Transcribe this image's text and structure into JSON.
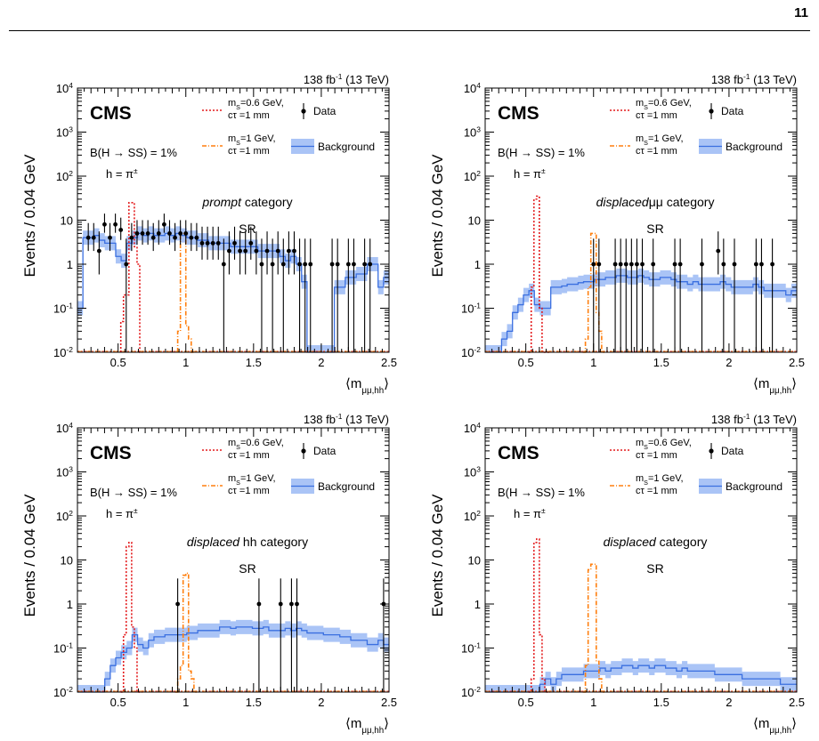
{
  "page": {
    "number": "11"
  },
  "shared": {
    "lumi": "138 fb",
    "lumi_exp": "-1",
    "energy": " (13 TeV)",
    "cms": "CMS",
    "br": "B(H → SS) = 1%",
    "hadron": "h = π",
    "hadron_exp": "±",
    "ylabel": "Events / 0.04 GeV",
    "xlabel": "⟨m",
    "xlabel_sub": "μμ,hh",
    "xlabel_close": "⟩",
    "legend": {
      "sig1_line1": "m",
      "sig1_sub": "S",
      "sig1_rest": "=0.6 GeV,",
      "sig1_line2": "cτ =1 mm",
      "sig2_line1": "m",
      "sig2_sub": "S",
      "sig2_rest": "=1 GeV,",
      "sig2_line2": "cτ =1 mm",
      "data": "Data",
      "background": "Background"
    },
    "xticks": [
      "0.5",
      "1",
      "1.5",
      "2",
      "2.5"
    ],
    "yticks": [
      {
        "base": "10",
        "exp": "-2"
      },
      {
        "base": "10",
        "exp": "-1"
      },
      {
        "base": "1",
        "exp": ""
      },
      {
        "base": "10",
        "exp": ""
      },
      {
        "base": "10",
        "exp": "2"
      },
      {
        "base": "10",
        "exp": "3"
      },
      {
        "base": "10",
        "exp": "4"
      }
    ]
  },
  "colors": {
    "sig1": "#e31a1c",
    "sig2": "#ff7f0e",
    "bkg_line": "#3a6fe0",
    "bkg_band": "#aac4f6",
    "data": "#000000"
  },
  "chart_data": [
    {
      "type": "histogram",
      "category_italic": "prompt",
      "category_rest": " category",
      "region": "SR",
      "xlim": [
        0.2,
        2.5
      ],
      "ylim": [
        0.01,
        10000
      ],
      "yscale": "log",
      "background": [
        0.1,
        4,
        4,
        4.5,
        3.5,
        3,
        3,
        1.5,
        1.2,
        3,
        4,
        5,
        4.5,
        5,
        4.5,
        4.5,
        5,
        4.5,
        5,
        4.5,
        4,
        4,
        3.5,
        3.5,
        3,
        3,
        3,
        3,
        2.5,
        2.5,
        2.5,
        2.5,
        2.5,
        2,
        2,
        2,
        2,
        1.5,
        1.2,
        1.5,
        1,
        0.4,
        0.01,
        0.01,
        0.01,
        0.01,
        0.01,
        0.3,
        0.3,
        0.5,
        0.5,
        0.6,
        0.6,
        1.0,
        1.0,
        0.3,
        0.5
      ],
      "sig1": {
        "x0": 0.52,
        "x1": 0.68,
        "values": [
          0.05,
          0.2,
          0.2,
          25,
          25,
          2.5,
          1,
          0.01
        ]
      },
      "sig2": {
        "x0": 0.94,
        "x1": 1.06,
        "values": [
          0.03,
          5,
          5,
          0.04,
          0.02,
          0.01
        ]
      },
      "data_x": [
        0.28,
        0.32,
        0.36,
        0.4,
        0.44,
        0.48,
        0.52,
        0.56,
        0.6,
        0.64,
        0.68,
        0.72,
        0.76,
        0.8,
        0.84,
        0.88,
        0.92,
        0.96,
        1.0,
        1.04,
        1.08,
        1.12,
        1.16,
        1.2,
        1.24,
        1.28,
        1.32,
        1.36,
        1.4,
        1.44,
        1.48,
        1.52,
        1.56,
        1.6,
        1.64,
        1.68,
        1.72,
        1.76,
        1.8,
        1.84,
        1.88,
        1.92,
        2.08,
        2.12,
        2.2,
        2.24,
        2.32,
        2.36
      ],
      "data_y": [
        4,
        4,
        2,
        8,
        4,
        8,
        6,
        1,
        4,
        5,
        5,
        5,
        4,
        5,
        8,
        5,
        4,
        5,
        5,
        4,
        4,
        3,
        3,
        3,
        3,
        1,
        2,
        3,
        2,
        2,
        3,
        2,
        1,
        2,
        1,
        2,
        1,
        2,
        2,
        1,
        1,
        1,
        1,
        1,
        1,
        1,
        1,
        1
      ]
    },
    {
      "type": "histogram",
      "category_italic": "displaced",
      "category_rest": "μμ category",
      "region": "SR",
      "xlim": [
        0.2,
        2.5
      ],
      "ylim": [
        0.01,
        10000
      ],
      "yscale": "log",
      "background": [
        0.01,
        0.01,
        0.01,
        0.02,
        0.03,
        0.08,
        0.12,
        0.2,
        0.25,
        0.12,
        0.1,
        0.1,
        0.3,
        0.3,
        0.32,
        0.35,
        0.35,
        0.38,
        0.4,
        0.4,
        0.45,
        0.45,
        0.5,
        0.5,
        0.55,
        0.55,
        0.5,
        0.5,
        0.55,
        0.5,
        0.45,
        0.45,
        0.5,
        0.5,
        0.45,
        0.4,
        0.4,
        0.35,
        0.4,
        0.35,
        0.35,
        0.35,
        0.35,
        0.4,
        0.35,
        0.3,
        0.3,
        0.3,
        0.3,
        0.35,
        0.3,
        0.25,
        0.25,
        0.25,
        0.25,
        0.2,
        0.25
      ],
      "sig1": {
        "x0": 0.52,
        "x1": 0.68,
        "values": [
          0.01,
          0.3,
          30,
          35,
          0.1,
          0.01,
          0.01,
          0.01
        ]
      },
      "sig2": {
        "x0": 0.92,
        "x1": 1.08,
        "values": [
          0.01,
          0.02,
          0.3,
          5,
          5,
          0.08,
          0.03,
          0.01
        ]
      },
      "data_x": [
        1.0,
        1.04,
        1.16,
        1.2,
        1.24,
        1.28,
        1.32,
        1.36,
        1.44,
        1.6,
        1.64,
        1.8,
        1.92,
        1.96,
        2.04,
        2.2,
        2.24,
        2.32
      ],
      "data_y": [
        1,
        1,
        1,
        1,
        1,
        1,
        1,
        1,
        1,
        1,
        1,
        1,
        2,
        1,
        1,
        1,
        1,
        1
      ]
    },
    {
      "type": "histogram",
      "category_italic": "displaced",
      "category_rest": " hh category",
      "region": "SR",
      "xlim": [
        0.2,
        2.5
      ],
      "ylim": [
        0.01,
        10000
      ],
      "yscale": "log",
      "background": [
        0.01,
        0.01,
        0.01,
        0.01,
        0.01,
        0.02,
        0.04,
        0.06,
        0.08,
        0.1,
        0.2,
        0.12,
        0.1,
        0.15,
        0.18,
        0.18,
        0.2,
        0.2,
        0.2,
        0.2,
        0.22,
        0.22,
        0.25,
        0.25,
        0.25,
        0.25,
        0.3,
        0.3,
        0.28,
        0.3,
        0.3,
        0.3,
        0.28,
        0.28,
        0.3,
        0.25,
        0.25,
        0.25,
        0.28,
        0.25,
        0.28,
        0.25,
        0.22,
        0.22,
        0.22,
        0.2,
        0.2,
        0.2,
        0.18,
        0.18,
        0.15,
        0.15,
        0.15,
        0.12,
        0.12,
        0.15,
        0.12
      ],
      "sig1": {
        "x0": 0.52,
        "x1": 0.68,
        "values": [
          0.01,
          0.2,
          20,
          25,
          0.3,
          0.1,
          0.01,
          0.01
        ]
      },
      "sig2": {
        "x0": 0.92,
        "x1": 1.08,
        "values": [
          0.01,
          0.02,
          0.04,
          4.5,
          5,
          0.03,
          0.02,
          0.01
        ]
      },
      "data_x": [
        0.94,
        1.54,
        1.7,
        1.78,
        1.82,
        2.46
      ],
      "data_y": [
        1,
        1,
        1,
        1,
        1,
        1
      ]
    },
    {
      "type": "histogram",
      "category_italic": "displaced",
      "category_rest": " category",
      "region": "SR",
      "xlim": [
        0.2,
        2.5
      ],
      "ylim": [
        0.01,
        10000
      ],
      "yscale": "log",
      "background": [
        0.01,
        0.01,
        0.01,
        0.01,
        0.01,
        0.01,
        0.01,
        0.01,
        0.01,
        0.01,
        0.015,
        0.02,
        0.015,
        0.02,
        0.025,
        0.025,
        0.025,
        0.025,
        0.03,
        0.03,
        0.03,
        0.035,
        0.03,
        0.035,
        0.035,
        0.04,
        0.04,
        0.035,
        0.04,
        0.04,
        0.035,
        0.04,
        0.04,
        0.035,
        0.035,
        0.03,
        0.035,
        0.03,
        0.03,
        0.03,
        0.03,
        0.03,
        0.025,
        0.025,
        0.025,
        0.025,
        0.025,
        0.02,
        0.02,
        0.02,
        0.02,
        0.02,
        0.02,
        0.02,
        0.015,
        0.015,
        0.015
      ],
      "sig1": {
        "x0": 0.52,
        "x1": 0.68,
        "values": [
          0.01,
          0.02,
          25,
          30,
          0.2,
          0.02,
          0.01,
          0.01
        ]
      },
      "sig2": {
        "x0": 0.92,
        "x1": 1.08,
        "values": [
          0.01,
          0.04,
          6,
          8,
          8,
          0.05,
          0.02,
          0.01
        ]
      },
      "data_x": [],
      "data_y": []
    }
  ]
}
